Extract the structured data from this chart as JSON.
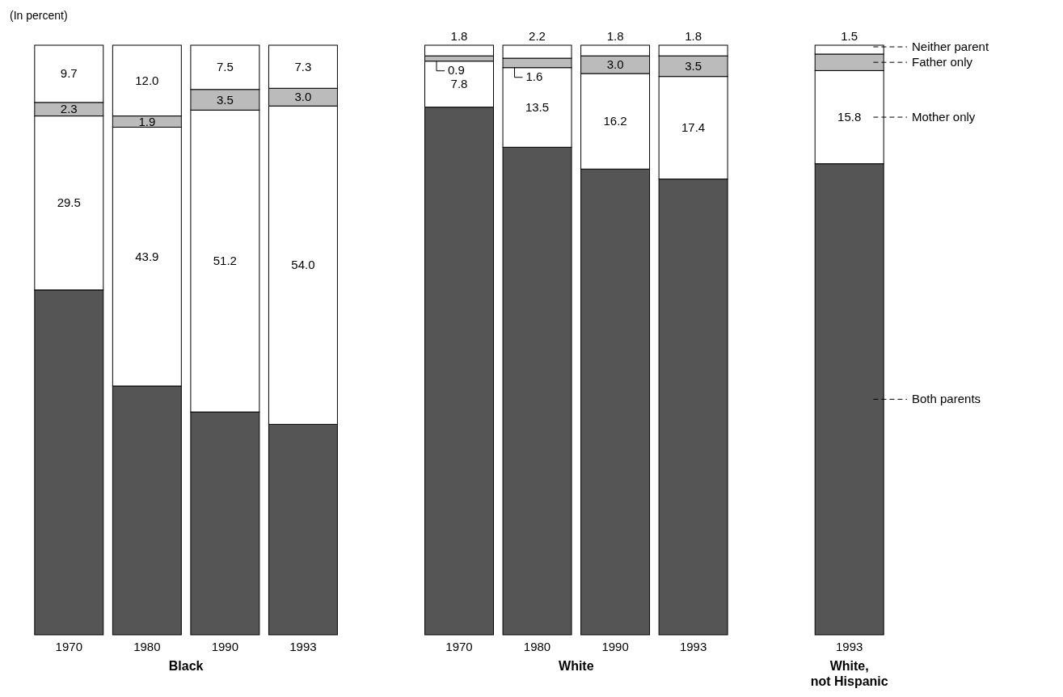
{
  "chart_data": {
    "type": "bar",
    "stacked": true,
    "ylabel": "(In percent)",
    "categories": [
      "1970",
      "1980",
      "1990",
      "1993",
      null,
      "1970",
      "1980",
      "1990",
      "1993",
      null,
      "1993"
    ],
    "series": [
      {
        "name": "Both parents",
        "color": "#555555",
        "values": [
          58.5,
          42.2,
          37.8,
          35.7,
          null,
          89.5,
          82.7,
          79.0,
          77.3,
          null,
          79.9
        ],
        "value_labels": [
          null,
          null,
          null,
          null,
          null,
          null,
          null,
          null,
          null,
          null,
          null
        ]
      },
      {
        "name": "Mother only",
        "color": "#ffffff",
        "values": [
          29.5,
          43.9,
          51.2,
          54.0,
          null,
          7.8,
          13.5,
          16.2,
          17.4,
          null,
          15.8
        ],
        "value_labels": [
          "29.5",
          "43.9",
          "51.2",
          "54.0",
          null,
          "7.8",
          "13.5",
          "16.2",
          "17.4",
          null,
          "15.8"
        ]
      },
      {
        "name": "Father only",
        "color": "#bbbbbb",
        "values": [
          2.3,
          1.9,
          3.5,
          3.0,
          null,
          0.9,
          1.6,
          3.0,
          3.5,
          null,
          2.8
        ],
        "value_labels": [
          "2.3",
          "1.9",
          "3.5",
          "3.0",
          null,
          "0.9",
          "1.6",
          "3.0",
          "3.5",
          null,
          null
        ]
      },
      {
        "name": "Neither parent",
        "color": "#ffffff",
        "values": [
          9.7,
          12.0,
          7.5,
          7.3,
          null,
          1.8,
          2.2,
          1.8,
          1.8,
          null,
          1.5
        ],
        "value_labels": [
          "9.7",
          "12.0",
          "7.5",
          "7.3",
          null,
          "1.8",
          "2.2",
          "1.8",
          "1.8",
          null,
          "1.5"
        ]
      }
    ],
    "ylim": [
      0,
      100
    ],
    "tick_labels": "x",
    "legend": "right",
    "annotations": [
      "Black",
      "White",
      "White, not Hispanic"
    ]
  }
}
